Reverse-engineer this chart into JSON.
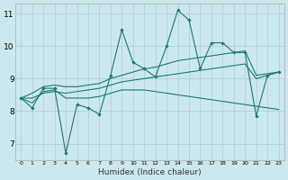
{
  "xlabel": "Humidex (Indice chaleur)",
  "bg_color": "#cce8ef",
  "grid_color": "#aacccc",
  "line_color": "#1a7a6e",
  "xlim": [
    -0.5,
    23.5
  ],
  "ylim": [
    6.5,
    11.3
  ],
  "yticks": [
    7,
    8,
    9,
    10,
    11
  ],
  "xticks": [
    0,
    1,
    2,
    3,
    4,
    5,
    6,
    7,
    8,
    9,
    10,
    11,
    12,
    13,
    14,
    15,
    16,
    17,
    18,
    19,
    20,
    21,
    22,
    23
  ],
  "series_jagged": [
    8.4,
    8.1,
    8.7,
    8.7,
    6.7,
    8.2,
    8.1,
    7.9,
    9.1,
    10.5,
    9.5,
    9.3,
    9.05,
    10.0,
    11.1,
    10.8,
    9.3,
    10.1,
    10.1,
    9.8,
    9.8,
    7.85,
    9.1,
    9.2
  ],
  "series_upper": [
    8.4,
    8.55,
    8.75,
    8.8,
    8.75,
    8.75,
    8.8,
    8.85,
    9.0,
    9.1,
    9.2,
    9.3,
    9.35,
    9.45,
    9.55,
    9.6,
    9.65,
    9.7,
    9.75,
    9.8,
    9.85,
    9.1,
    9.15,
    9.2
  ],
  "series_lower": [
    8.4,
    8.25,
    8.6,
    8.65,
    8.4,
    8.4,
    8.4,
    8.45,
    8.55,
    8.65,
    8.65,
    8.65,
    8.6,
    8.55,
    8.5,
    8.45,
    8.4,
    8.35,
    8.3,
    8.25,
    8.2,
    8.15,
    8.1,
    8.05
  ],
  "series_trend": [
    8.4,
    8.4,
    8.55,
    8.6,
    8.55,
    8.6,
    8.65,
    8.7,
    8.8,
    8.9,
    8.95,
    9.0,
    9.05,
    9.1,
    9.15,
    9.2,
    9.25,
    9.3,
    9.35,
    9.4,
    9.45,
    9.0,
    9.1,
    9.2
  ]
}
